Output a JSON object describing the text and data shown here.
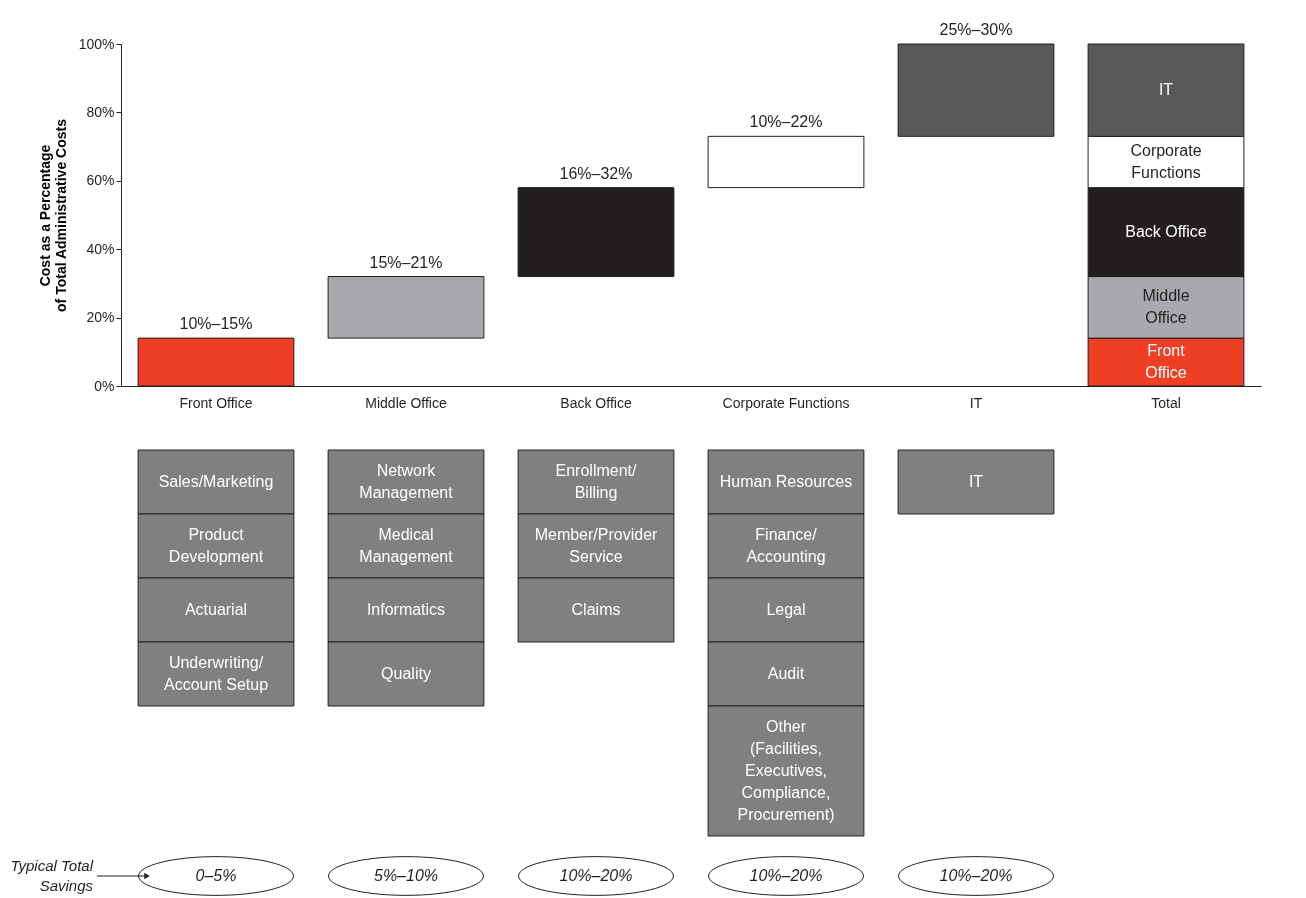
{
  "chart_data": [
    {
      "type": "bar",
      "ylabel": "Cost as a Percentage of Total Administrative Costs",
      "categories": [
        "Front Office",
        "Middle Office",
        "Back Office",
        "Corporate Functions",
        "IT",
        "Total"
      ],
      "ylim": [
        0,
        100
      ],
      "yticks": [
        {
          "value": 0,
          "label": "0%"
        },
        {
          "value": 20,
          "label": "20%"
        },
        {
          "value": 40,
          "label": "40%"
        },
        {
          "value": 60,
          "label": "60%"
        },
        {
          "value": 80,
          "label": "80%"
        },
        {
          "value": 100,
          "label": "100%"
        }
      ],
      "grid": false,
      "series": [
        {
          "color": "#ee3e23",
          "values": [
            14,
            null,
            null,
            null,
            null,
            14
          ],
          "base": [
            0,
            null,
            null,
            null,
            null,
            0
          ]
        },
        {
          "color": "#a7a9ac",
          "values": [
            null,
            18,
            null,
            null,
            null,
            18
          ],
          "base": [
            null,
            14,
            null,
            null,
            null,
            14
          ]
        },
        {
          "color": "#231f20",
          "values": [
            null,
            null,
            26,
            null,
            null,
            26
          ],
          "base": [
            null,
            null,
            32,
            null,
            null,
            32
          ]
        },
        {
          "color": "#ffffff",
          "values": [
            null,
            null,
            null,
            15,
            null,
            15
          ],
          "base": [
            null,
            null,
            null,
            58,
            null,
            58
          ]
        },
        {
          "color": "#58595b",
          "values": [
            null,
            null,
            null,
            null,
            27,
            27
          ],
          "base": [
            null,
            null,
            null,
            null,
            73,
            73
          ]
        }
      ],
      "annotations": [
        "IT",
        "Corporate Functions",
        "Back Office",
        "Middle Office",
        "Front Office",
        {
          "text": "10%–15%",
          "x": "Front Office",
          "y": 14
        },
        {
          "text": "15%–21%",
          "x": "Middle Office",
          "y": 32
        },
        {
          "text": "16%–32%",
          "x": "Back Office",
          "y": 58
        },
        {
          "text": "10%–22%",
          "x": "Corporate Functions",
          "y": 73
        },
        {
          "text": "25%–30%",
          "x": "IT",
          "y": 100
        }
      ]
    },
    {
      "type": "other",
      "annotations": [
        "Sales/Marketing",
        "Product Development",
        "Actuarial",
        "Underwriting/Account Setup"
      ]
    },
    {
      "type": "other",
      "annotations": [
        "Network Management",
        "Medical Management",
        "Informatics",
        "Quality"
      ]
    },
    {
      "type": "other",
      "annotations": [
        "Enrollment/Billing",
        "Member/Provider Service",
        "Claims"
      ]
    },
    {
      "type": "other",
      "annotations": [
        "Human Resources",
        "Finance/Accounting",
        "Legal",
        "Audit",
        "Other (Facilities, Executives, Compliance, Procurement)"
      ]
    },
    {
      "type": "other",
      "annotations": [
        "IT"
      ]
    },
    {
      "type": "other",
      "title": "Typical Total Savings",
      "annotations": [
        "0–5%",
        "5%–10%",
        "10%–20%",
        "10%–20%",
        "10%–20%"
      ]
    }
  ]
}
